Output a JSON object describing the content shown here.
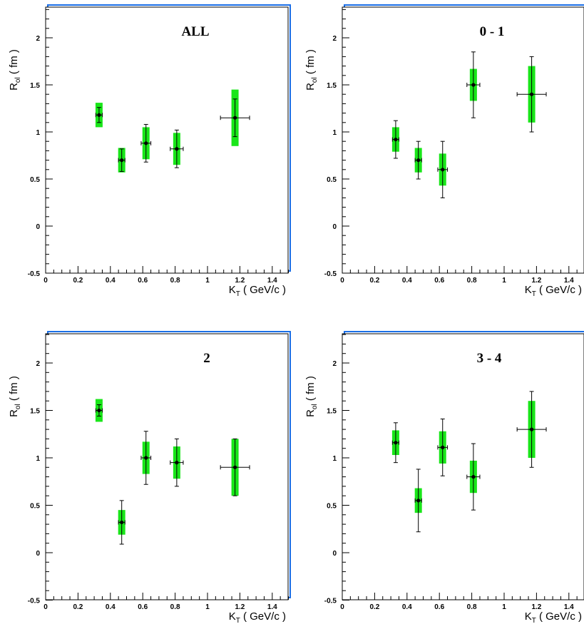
{
  "colors": {
    "box": "#19e619",
    "marker": "#000000",
    "frame": "#000000",
    "frame_shadow": "#1a6ee6"
  },
  "chart_data": [
    {
      "type": "scatter",
      "title": "ALL",
      "xlabel_main": "K",
      "xlabel_sub": "T",
      "xlabel_rest": " ( GeV/c )",
      "ylabel_main": "R",
      "ylabel_sub": "ol",
      "ylabel_rest": " ( fm )",
      "xlim": [
        0,
        1.5
      ],
      "ylim": [
        -0.5,
        2.3
      ],
      "xticks": [
        "0",
        "0.2",
        "0.4",
        "0.6",
        "0.8",
        "1",
        "1.2",
        "1.4"
      ],
      "yticks": [
        "-0.5",
        "0",
        "0.5",
        "1",
        "1.5",
        "2"
      ],
      "points": [
        {
          "x": 0.33,
          "y": 1.18,
          "xerr": 0.02,
          "yerr": 0.08,
          "sys": 0.13
        },
        {
          "x": 0.47,
          "y": 0.7,
          "xerr": 0.02,
          "yerr": 0.12,
          "sys": 0.13
        },
        {
          "x": 0.62,
          "y": 0.88,
          "xerr": 0.03,
          "yerr": 0.2,
          "sys": 0.17
        },
        {
          "x": 0.81,
          "y": 0.82,
          "xerr": 0.04,
          "yerr": 0.2,
          "sys": 0.17
        },
        {
          "x": 1.17,
          "y": 1.15,
          "xerr": 0.09,
          "yerr": 0.2,
          "sys": 0.3
        }
      ]
    },
    {
      "type": "scatter",
      "title": "0 - 1",
      "xlabel_main": "K",
      "xlabel_sub": "T",
      "xlabel_rest": " ( GeV/c )",
      "ylabel_main": "R",
      "ylabel_sub": "ol",
      "ylabel_rest": " ( fm )",
      "xlim": [
        0,
        1.5
      ],
      "ylim": [
        -0.5,
        2.3
      ],
      "xticks": [
        "0",
        "0.2",
        "0.4",
        "0.6",
        "0.8",
        "1",
        "1.2",
        "1.4"
      ],
      "yticks": [
        "-0.5",
        "0",
        "0.5",
        "1",
        "1.5",
        "2"
      ],
      "points": [
        {
          "x": 0.33,
          "y": 0.92,
          "xerr": 0.02,
          "yerr": 0.2,
          "sys": 0.13
        },
        {
          "x": 0.47,
          "y": 0.7,
          "xerr": 0.02,
          "yerr": 0.2,
          "sys": 0.13
        },
        {
          "x": 0.62,
          "y": 0.6,
          "xerr": 0.03,
          "yerr": 0.3,
          "sys": 0.17
        },
        {
          "x": 0.81,
          "y": 1.5,
          "xerr": 0.04,
          "yerr": 0.35,
          "sys": 0.17
        },
        {
          "x": 1.17,
          "y": 1.4,
          "xerr": 0.09,
          "yerr": 0.4,
          "sys": 0.3
        }
      ]
    },
    {
      "type": "scatter",
      "title": "2",
      "xlabel_main": "K",
      "xlabel_sub": "T",
      "xlabel_rest": " ( GeV/c )",
      "ylabel_main": "R",
      "ylabel_sub": "ol",
      "ylabel_rest": " ( fm )",
      "xlim": [
        0,
        1.5
      ],
      "ylim": [
        -0.5,
        2.3
      ],
      "xticks": [
        "0",
        "0.2",
        "0.4",
        "0.6",
        "0.8",
        "1",
        "1.2",
        "1.4"
      ],
      "yticks": [
        "-0.5",
        "0",
        "0.5",
        "1",
        "1.5",
        "2"
      ],
      "points": [
        {
          "x": 0.33,
          "y": 1.5,
          "xerr": 0.02,
          "yerr": 0.06,
          "sys": 0.12
        },
        {
          "x": 0.47,
          "y": 0.32,
          "xerr": 0.02,
          "yerr": 0.23,
          "sys": 0.13
        },
        {
          "x": 0.62,
          "y": 1.0,
          "xerr": 0.03,
          "yerr": 0.28,
          "sys": 0.17
        },
        {
          "x": 0.81,
          "y": 0.95,
          "xerr": 0.04,
          "yerr": 0.25,
          "sys": 0.17
        },
        {
          "x": 1.17,
          "y": 0.9,
          "xerr": 0.09,
          "yerr": 0.3,
          "sys": 0.3
        }
      ]
    },
    {
      "type": "scatter",
      "title": "3 - 4",
      "xlabel_main": "K",
      "xlabel_sub": "T",
      "xlabel_rest": " ( GeV/c )",
      "ylabel_main": "R",
      "ylabel_sub": "ol",
      "ylabel_rest": " ( fm )",
      "xlim": [
        0,
        1.5
      ],
      "ylim": [
        -0.5,
        2.3
      ],
      "xticks": [
        "0",
        "0.2",
        "0.4",
        "0.6",
        "0.8",
        "1",
        "1.2",
        "1.4"
      ],
      "yticks": [
        "-0.5",
        "0",
        "0.5",
        "1",
        "1.5",
        "2"
      ],
      "points": [
        {
          "x": 0.33,
          "y": 1.16,
          "xerr": 0.02,
          "yerr": 0.21,
          "sys": 0.13
        },
        {
          "x": 0.47,
          "y": 0.55,
          "xerr": 0.02,
          "yerr": 0.33,
          "sys": 0.13
        },
        {
          "x": 0.62,
          "y": 1.11,
          "xerr": 0.03,
          "yerr": 0.3,
          "sys": 0.17
        },
        {
          "x": 0.81,
          "y": 0.8,
          "xerr": 0.04,
          "yerr": 0.35,
          "sys": 0.17
        },
        {
          "x": 1.17,
          "y": 1.3,
          "xerr": 0.09,
          "yerr": 0.4,
          "sys": 0.3
        }
      ]
    }
  ]
}
